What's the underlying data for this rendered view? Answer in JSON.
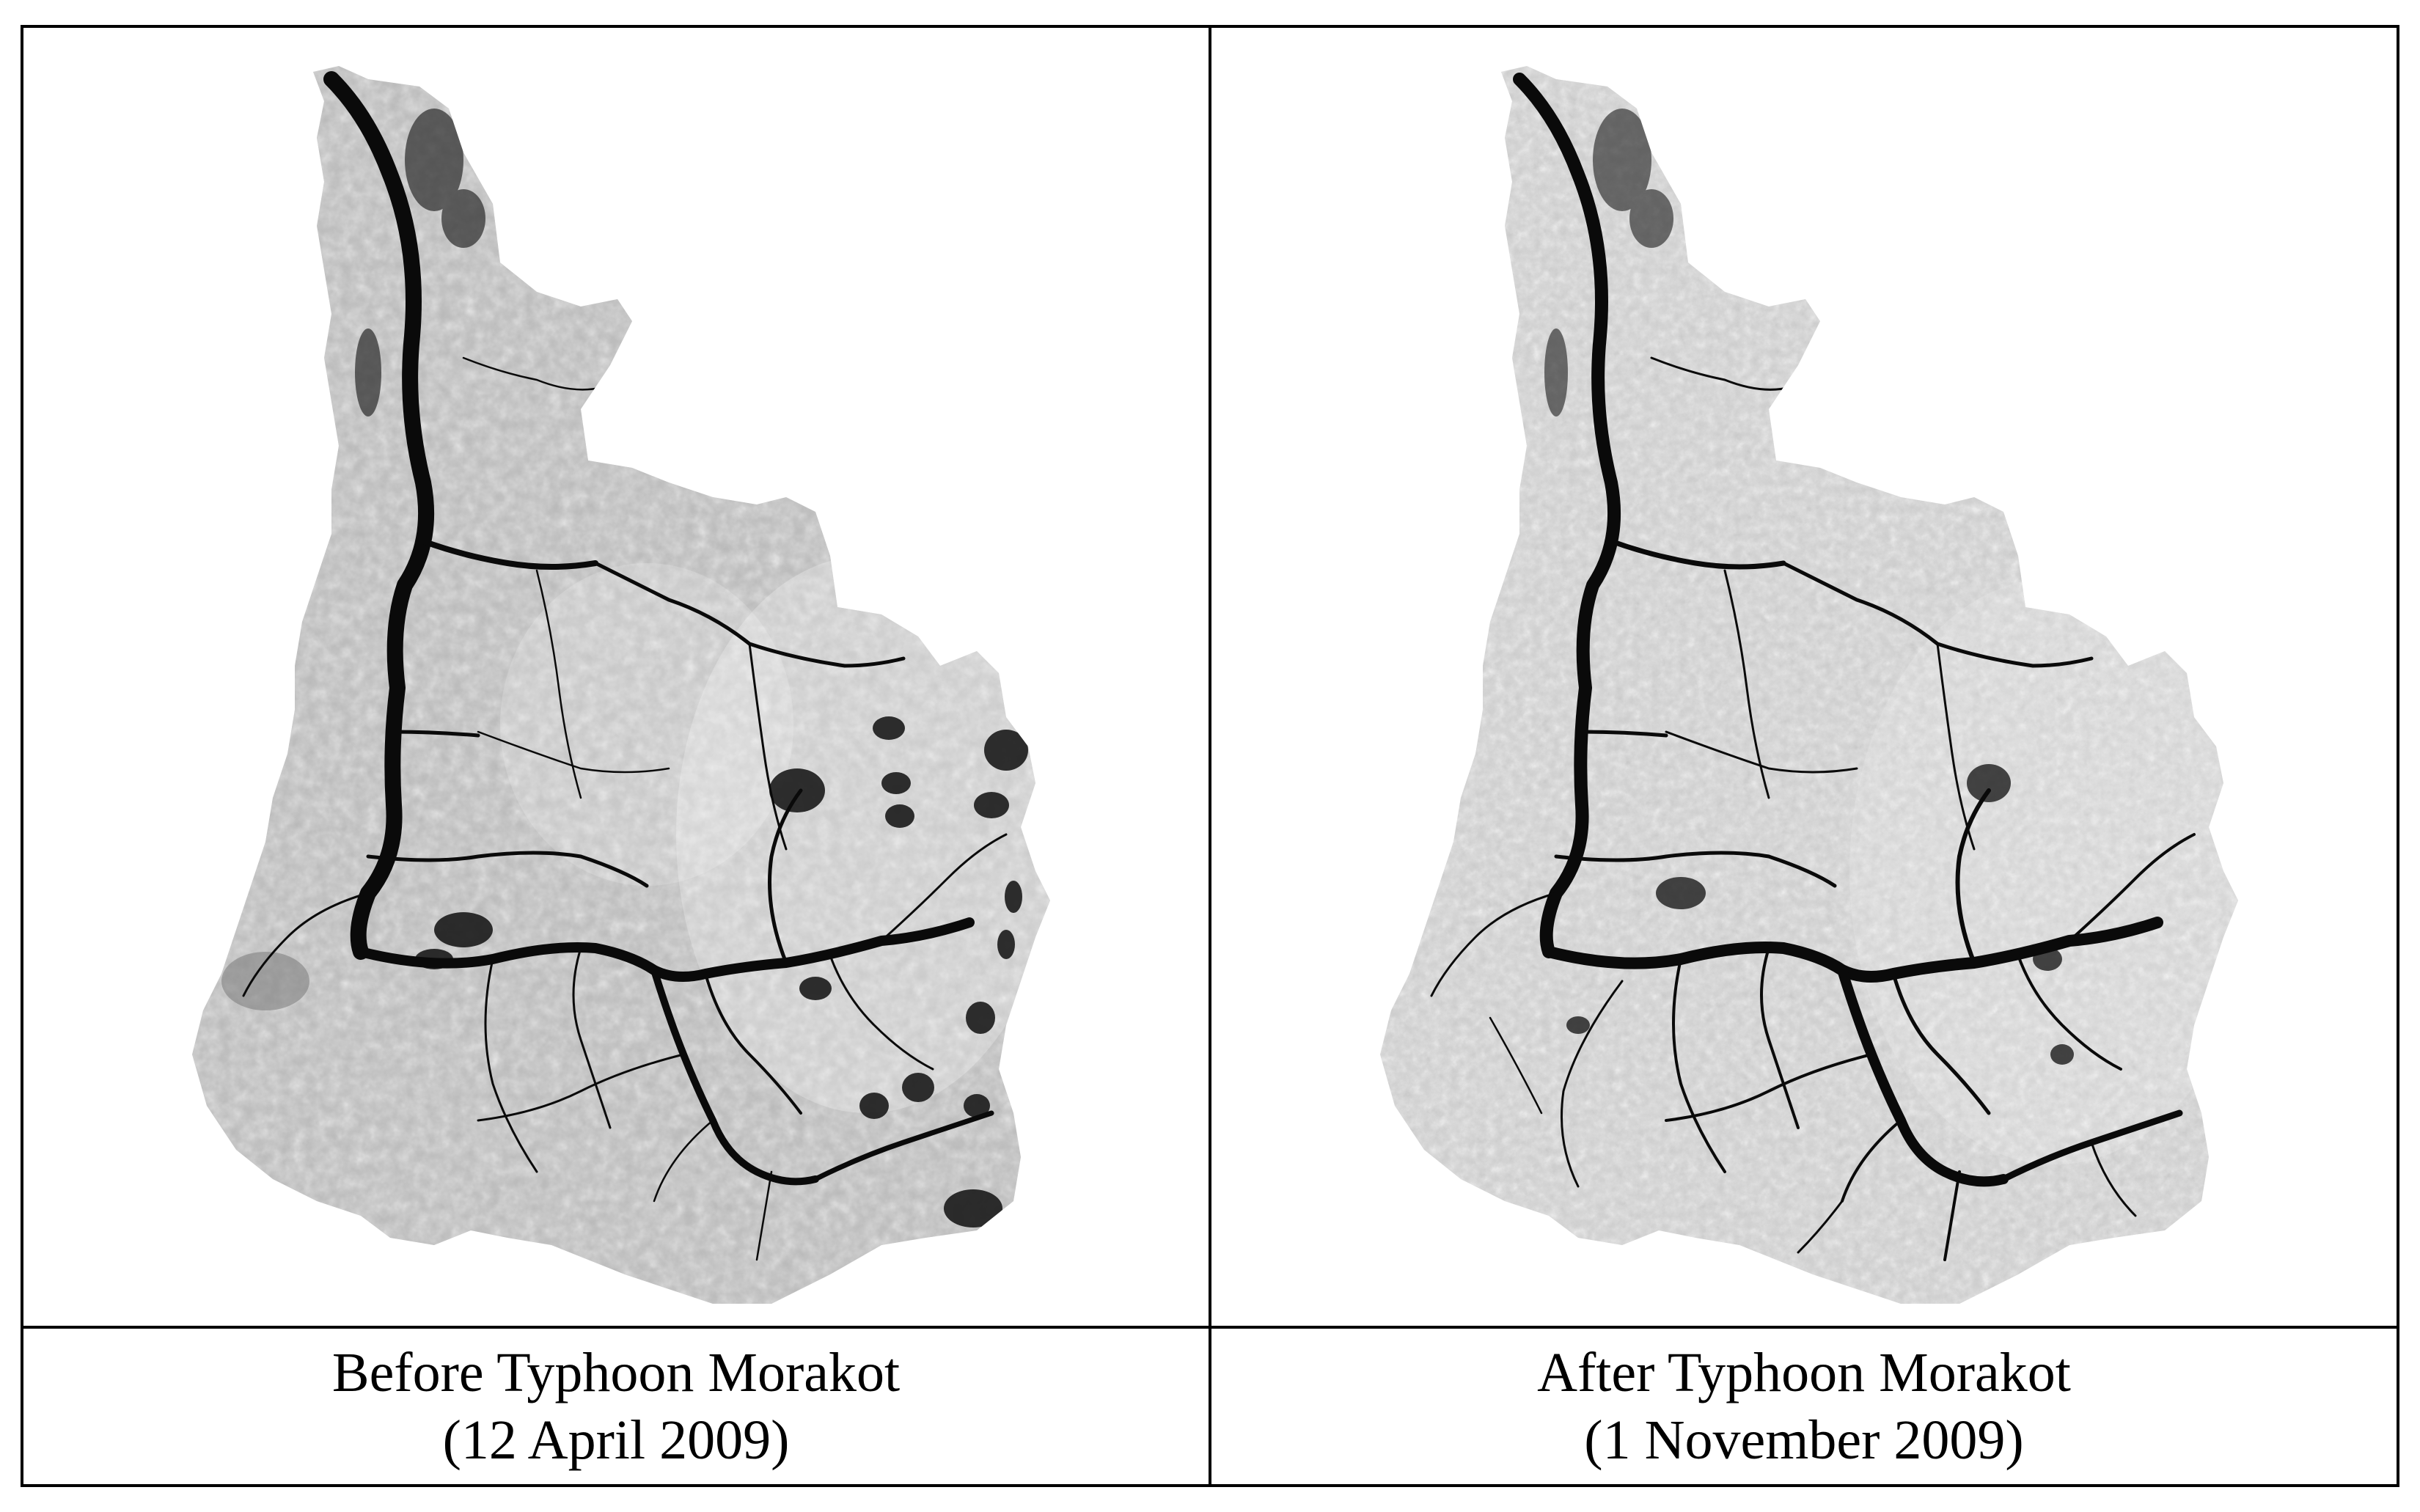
{
  "panels": [
    {
      "caption_line1": "Before Typhoon Morakot",
      "caption_line2": "(12 April 2009)",
      "image_tone": "#b8b8b8"
    },
    {
      "caption_line1": "After Typhoon Morakot",
      "caption_line2": "(1 November 2009)",
      "image_tone": "#cfcfcf"
    }
  ]
}
